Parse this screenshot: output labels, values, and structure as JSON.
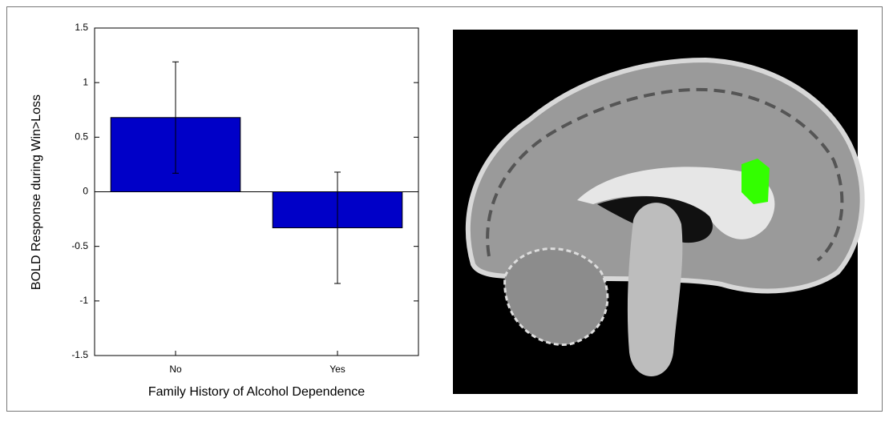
{
  "chart_data": {
    "type": "bar",
    "y_label": "BOLD Response during Win>Loss",
    "x_label": "Family History of Alcohol Dependence",
    "categories": [
      "No",
      "Yes"
    ],
    "values": [
      0.68,
      -0.33
    ],
    "errors": [
      0.51,
      0.51
    ],
    "color": "#0000c8",
    "ylim": [
      -1.5,
      1.5
    ],
    "yticks": [
      -1.5,
      -1,
      -0.5,
      0,
      0.5,
      1,
      1.5
    ]
  }
}
